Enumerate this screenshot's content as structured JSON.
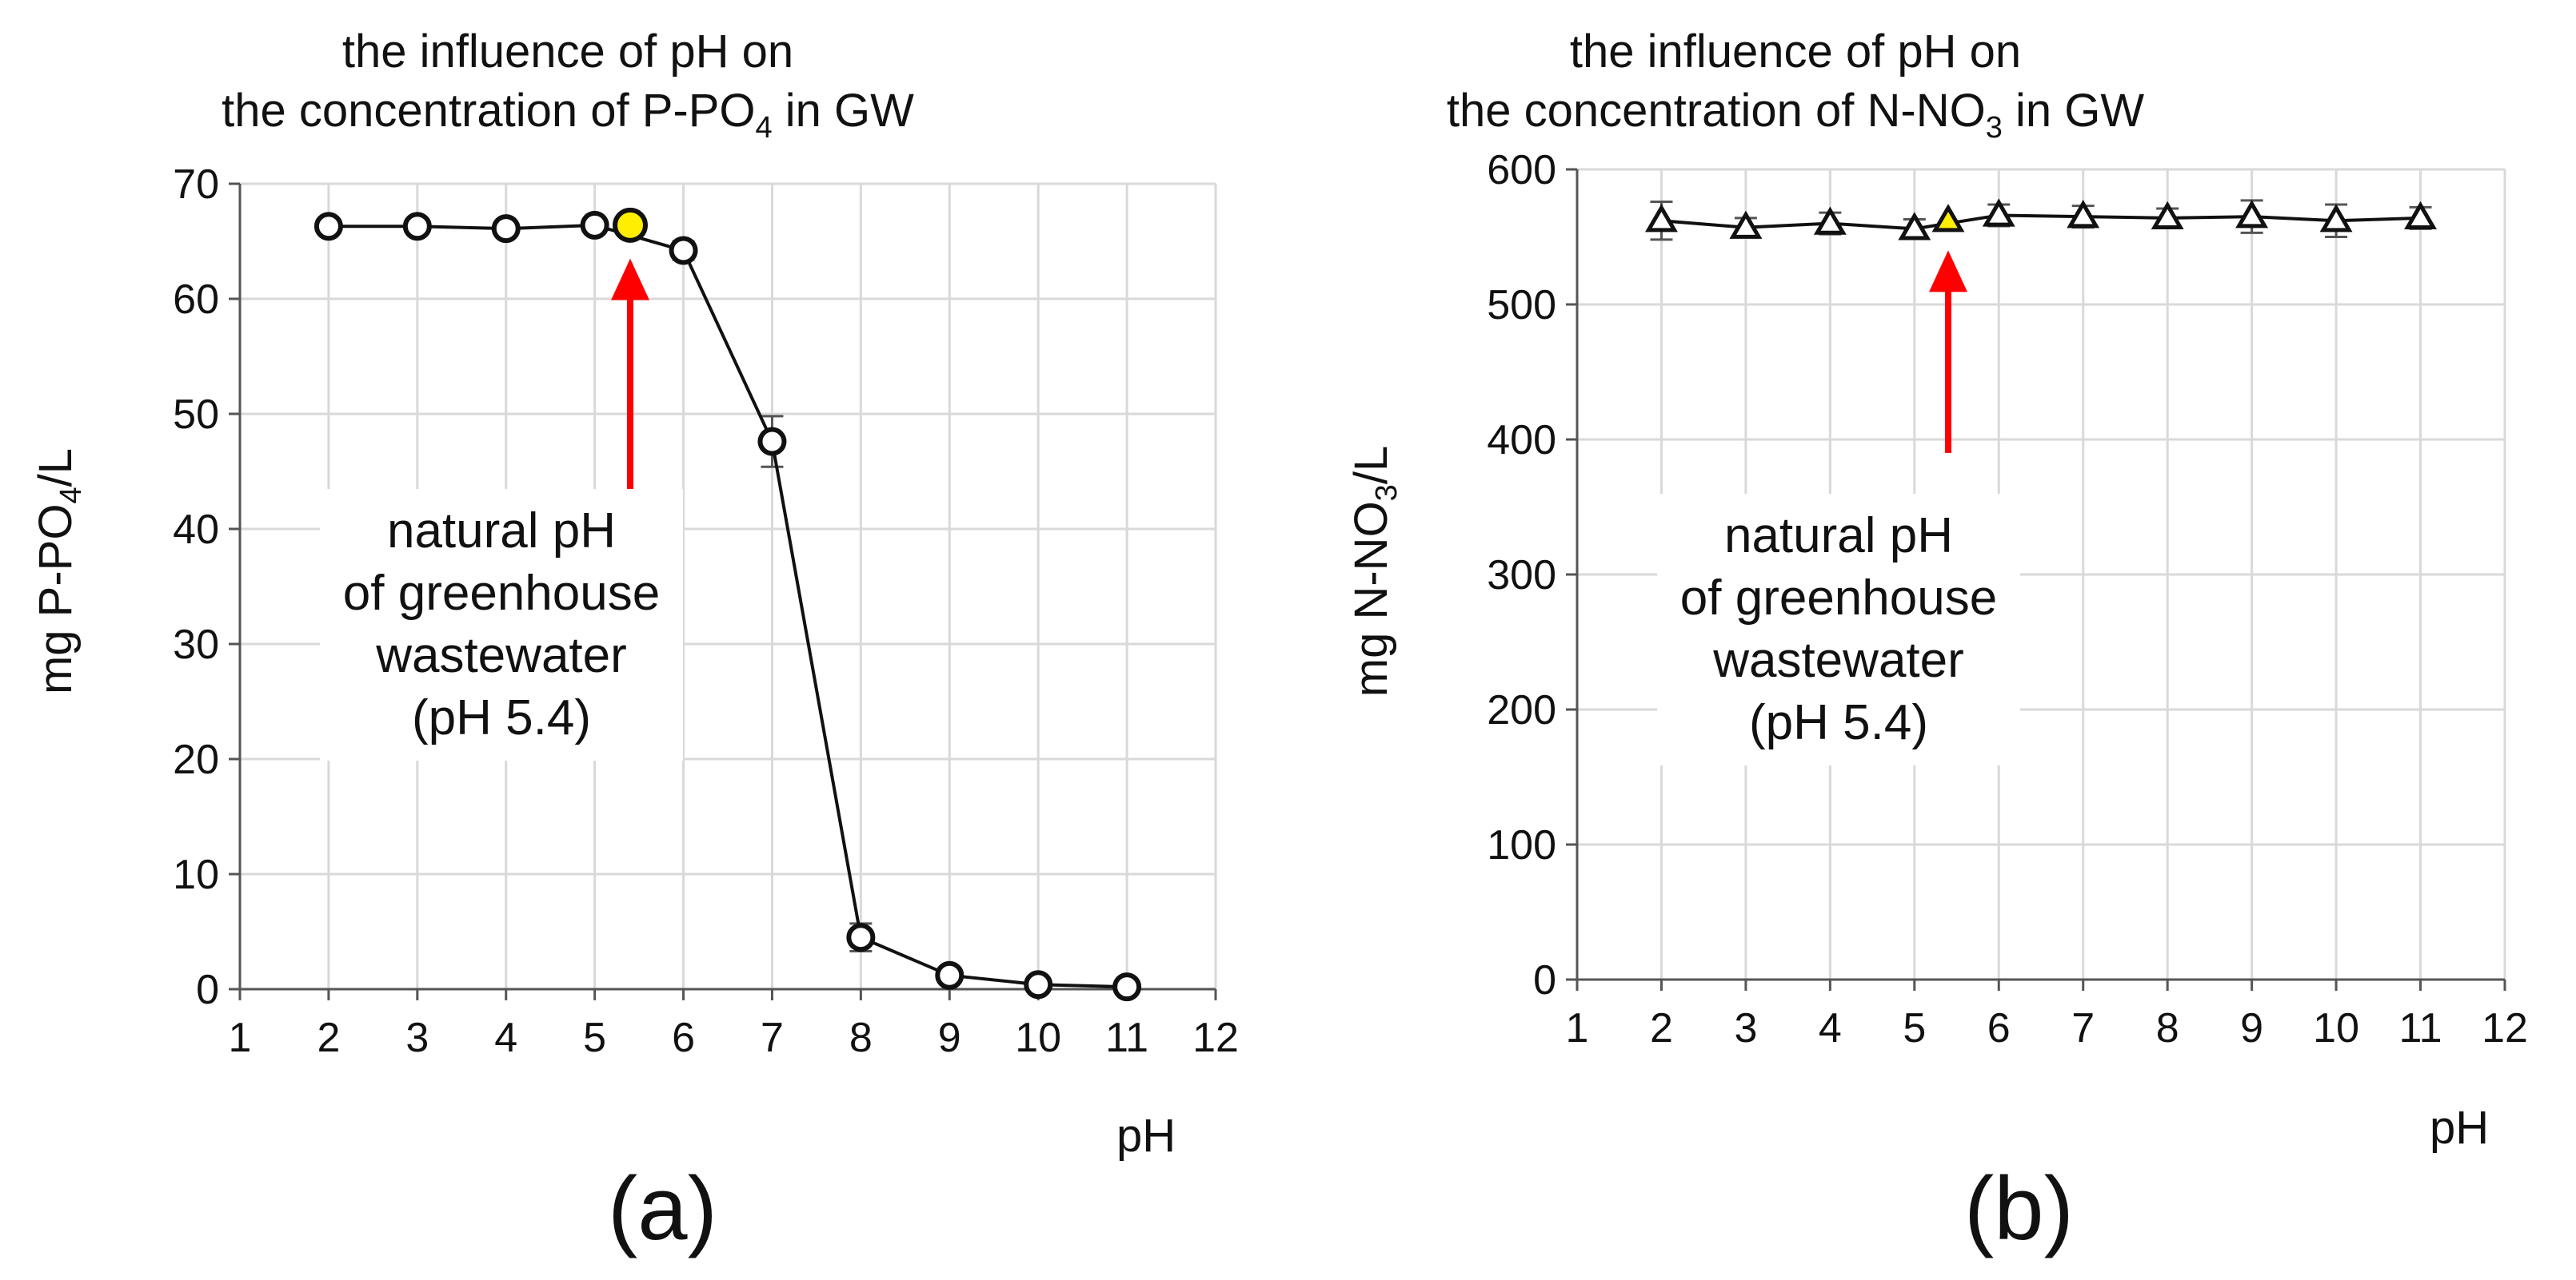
{
  "figure": {
    "panels": [
      {
        "id": "a",
        "panel_label": "(a)",
        "annotation": {
          "lines": [
            "natural pH",
            "of greenhouse",
            "wastewater",
            "(pH 5.4)"
          ]
        }
      },
      {
        "id": "b",
        "panel_label": "(b)",
        "annotation": {
          "lines": [
            "natural pH",
            "of greenhouse",
            "wastewater",
            "(pH 5.4)"
          ]
        }
      }
    ]
  },
  "chart_data": [
    {
      "type": "line",
      "title": "the influence of pH on the concentration of P-PO4 in GW",
      "title_line1": "the influence of pH on",
      "title_line2_prefix": "the concentration of P-PO",
      "title_line2_sub": "4",
      "title_line2_suffix": " in GW",
      "xlabel": "pH",
      "ylabel_prefix": "mg P-PO",
      "ylabel_sub": "4",
      "ylabel_suffix": "/L",
      "xlim": [
        1,
        12
      ],
      "ylim": [
        0,
        70
      ],
      "xticks": [
        1,
        2,
        3,
        4,
        5,
        6,
        7,
        8,
        9,
        10,
        11,
        12
      ],
      "yticks": [
        0,
        10,
        20,
        30,
        40,
        50,
        60,
        70
      ],
      "grid": true,
      "marker": "circle",
      "series": [
        {
          "name": "P-PO4",
          "x": [
            2,
            3,
            4,
            5,
            6,
            7,
            8,
            9,
            10,
            11
          ],
          "values": [
            66.3,
            66.3,
            66.1,
            66.4,
            64.2,
            47.6,
            4.5,
            1.2,
            0.4,
            0.2
          ],
          "error": [
            0.6,
            0.6,
            0.6,
            0.6,
            0.8,
            2.2,
            1.2,
            0.4,
            0.2,
            0.2
          ]
        }
      ],
      "highlight": {
        "x": 5.4,
        "value": 66.4,
        "color": "#ffee00",
        "label": "natural pH"
      },
      "arrow": {
        "x": 5.4,
        "from": 43,
        "to": 63.5,
        "color": "#ff0000"
      }
    },
    {
      "type": "line",
      "title": "the influence of pH on the concentration of N-NO3 in GW",
      "title_line1": "the influence of pH on",
      "title_line2_prefix": "the concentration of N-NO",
      "title_line2_sub": "3",
      "title_line2_suffix": " in GW",
      "xlabel": "pH",
      "ylabel_prefix": "mg N-NO",
      "ylabel_sub": "3",
      "ylabel_suffix": "/L",
      "xlim": [
        1,
        12
      ],
      "ylim": [
        0,
        600
      ],
      "xticks": [
        1,
        2,
        3,
        4,
        5,
        6,
        7,
        8,
        9,
        10,
        11,
        12
      ],
      "yticks": [
        0,
        100,
        200,
        300,
        400,
        500,
        600
      ],
      "grid": true,
      "marker": "triangle",
      "series": [
        {
          "name": "N-NO3",
          "x": [
            2,
            3,
            4,
            5,
            6,
            7,
            8,
            9,
            10,
            11
          ],
          "values": [
            562,
            557,
            560,
            556,
            566,
            565,
            564,
            565,
            562,
            564
          ],
          "error": [
            14,
            7,
            8,
            7,
            8,
            8,
            7,
            12,
            12,
            8
          ]
        }
      ],
      "highlight": {
        "x": 5.4,
        "value": 562,
        "color": "#ffee00",
        "label": "natural pH"
      },
      "arrow": {
        "x": 5.4,
        "from": 390,
        "to": 540,
        "color": "#ff0000"
      }
    }
  ]
}
